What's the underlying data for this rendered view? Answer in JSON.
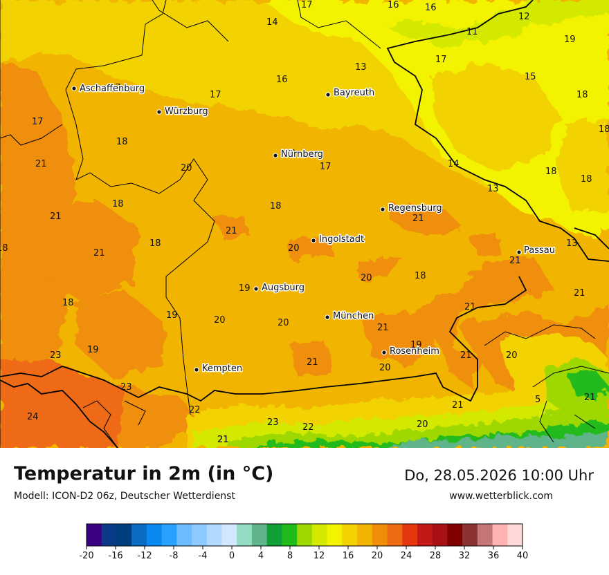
{
  "title": "Temperatur in 2m (in °C)",
  "model": "Modell: ICON-D2 06z, Deutscher Wetterdienst",
  "datetime": "Do, 28.05.2026 10:00 Uhr",
  "site": "www.wetterblick.com",
  "colors": {
    "yellow": "#f3f300",
    "gold": "#f2d200",
    "orange_light": "#f1b400",
    "orange": "#f08e0c",
    "green": "#3aa830",
    "border": "#000000"
  },
  "cities": [
    {
      "name": "Aschaffenburg"
    },
    {
      "name": "Würzburg"
    },
    {
      "name": "Bayreuth"
    },
    {
      "name": "Nürnberg"
    },
    {
      "name": "Regensburg"
    },
    {
      "name": "Ingolstadt"
    },
    {
      "name": "Passau"
    },
    {
      "name": "Augsburg"
    },
    {
      "name": "München"
    },
    {
      "name": "Rosenheim"
    },
    {
      "name": "Kempten"
    }
  ],
  "values": [
    "17",
    "16",
    "16",
    "14",
    "12",
    "11",
    "13",
    "19",
    "17",
    "15",
    "18",
    "18",
    "16",
    "17",
    "17",
    "17",
    "18",
    "21",
    "14",
    "18",
    "18",
    "13",
    "20",
    "20",
    "17",
    "21",
    "18",
    "18",
    "21",
    "21",
    "20",
    "18",
    "21",
    "13",
    "21",
    "18",
    "19",
    "20",
    "21",
    "18",
    "19",
    "18",
    "19",
    "20",
    "21",
    "20",
    "21",
    "23",
    "19",
    "21",
    "21",
    "20",
    "23",
    "21",
    "20",
    "22",
    "5",
    "21",
    "24",
    "21",
    "23",
    "22",
    "21",
    "20"
  ],
  "legend": {
    "colors": [
      "#3c0084",
      "#0b3a86",
      "#003f7f",
      "#0a6cc2",
      "#0a8af0",
      "#2aa0ff",
      "#6cbcff",
      "#8ec9ff",
      "#b1d9ff",
      "#d3e8ff",
      "#94dcc2",
      "#5fb48a",
      "#119d37",
      "#20ba1b",
      "#9fd800",
      "#d4e900",
      "#f3f300",
      "#f2d200",
      "#f1b400",
      "#f08e0c",
      "#ee6b15",
      "#e63810",
      "#c21818",
      "#a81114",
      "#800000",
      "#8b3333",
      "#c47575",
      "#ffb2b2",
      "#ffd8d8"
    ],
    "ticks": [
      "-20",
      "-16",
      "-12",
      "-8",
      "-4",
      "0",
      "4",
      "8",
      "12",
      "16",
      "20",
      "24",
      "28",
      "32",
      "36",
      "40"
    ]
  }
}
